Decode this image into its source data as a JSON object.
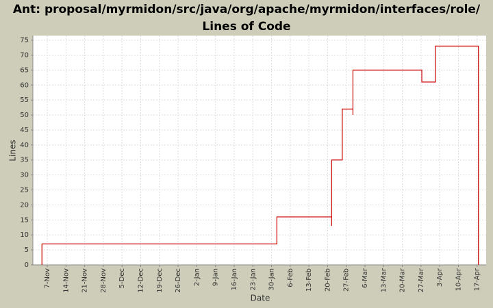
{
  "chart_data": {
    "type": "line",
    "title": "Ant: proposal/myrmidon/src/java/org/apache/myrmidon/interfaces/role/ Lines of Code",
    "x_label": "Date",
    "y_label": "Lines",
    "x": [
      -2,
      -2,
      86,
      86,
      106.5,
      106.5,
      106.5,
      110.5,
      110.5,
      114.5,
      114.5,
      114.5,
      140.3,
      140.3,
      145.4,
      145.4,
      161.5,
      161.5
    ],
    "series": [
      {
        "name": "Lines",
        "color": "#cc0000",
        "values": [
          0,
          7,
          7,
          16,
          16,
          13,
          35,
          35,
          52,
          52,
          50,
          65,
          65,
          61,
          61,
          73,
          73,
          0
        ]
      }
    ],
    "xlim": [
      -5.4,
      164.4
    ],
    "ylim": [
      0,
      76.5
    ],
    "xticks": [
      {
        "value": 0,
        "label": "7-Nov"
      },
      {
        "value": 7,
        "label": "14-Nov"
      },
      {
        "value": 14,
        "label": "21-Nov"
      },
      {
        "value": 21,
        "label": "28-Nov"
      },
      {
        "value": 28,
        "label": "5-Dec"
      },
      {
        "value": 35,
        "label": "12-Dec"
      },
      {
        "value": 42,
        "label": "19-Dec"
      },
      {
        "value": 49,
        "label": "26-Dec"
      },
      {
        "value": 56,
        "label": "2-Jan"
      },
      {
        "value": 63,
        "label": "9-Jan"
      },
      {
        "value": 70,
        "label": "16-Jan"
      },
      {
        "value": 77,
        "label": "23-Jan"
      },
      {
        "value": 84,
        "label": "30-Jan"
      },
      {
        "value": 91,
        "label": "6-Feb"
      },
      {
        "value": 98,
        "label": "13-Feb"
      },
      {
        "value": 105,
        "label": "20-Feb"
      },
      {
        "value": 112,
        "label": "27-Feb"
      },
      {
        "value": 119,
        "label": "6-Mar"
      },
      {
        "value": 126,
        "label": "13-Mar"
      },
      {
        "value": 133,
        "label": "20-Mar"
      },
      {
        "value": 140,
        "label": "27-Mar"
      },
      {
        "value": 147,
        "label": "3-Apr"
      },
      {
        "value": 154,
        "label": "10-Apr"
      },
      {
        "value": 161,
        "label": "17-Apr"
      }
    ],
    "yticks": [
      0,
      5,
      10,
      15,
      20,
      25,
      30,
      35,
      40,
      45,
      50,
      55,
      60,
      65,
      70,
      75
    ],
    "grid": true
  }
}
